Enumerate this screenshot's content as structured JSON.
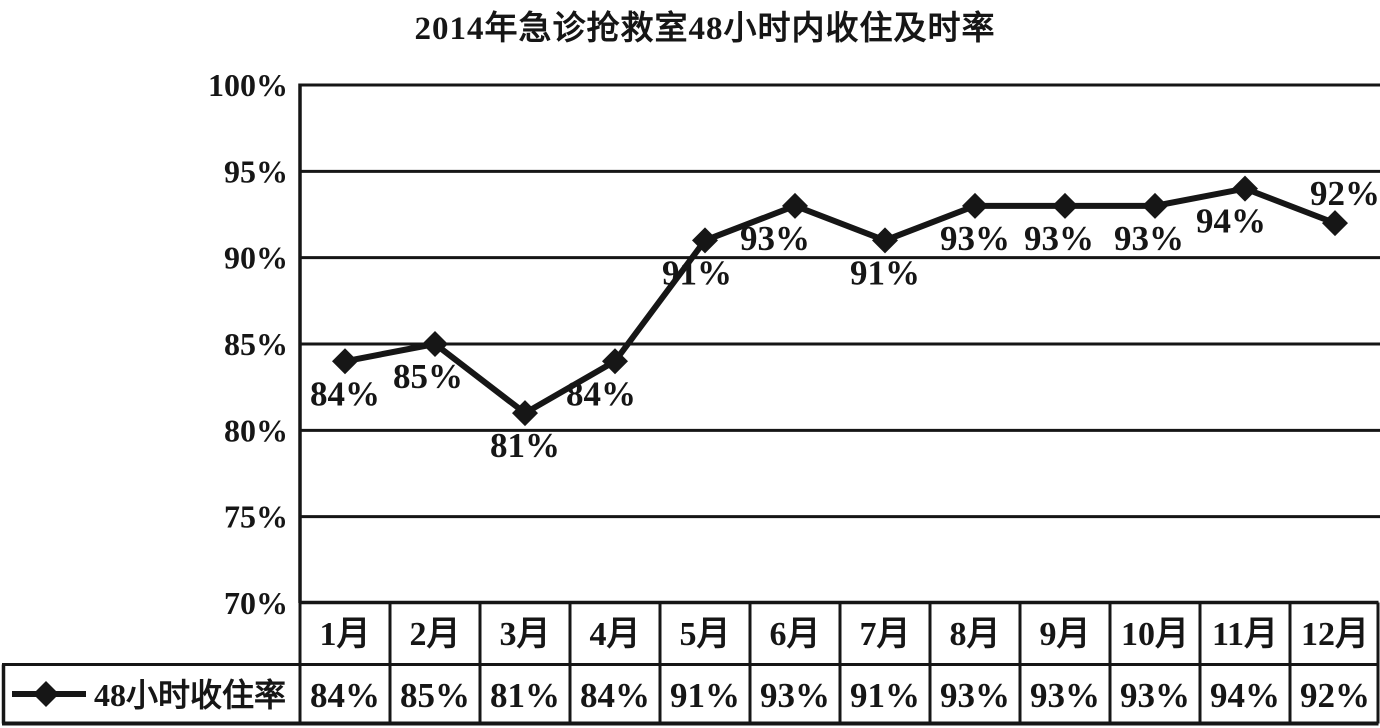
{
  "title": "2014年急诊抢救室48小时内收住及时率",
  "colors": {
    "ink": "#161616",
    "background": "#ffffff"
  },
  "y_axis": {
    "tick_labels": [
      "100%",
      "95%",
      "90%",
      "85%",
      "80%",
      "75%",
      "70%"
    ],
    "tick_values": [
      100,
      95,
      90,
      85,
      80,
      75,
      70
    ]
  },
  "legend": {
    "label": "48小时收住率",
    "marker": "diamond-on-line"
  },
  "chart_data": {
    "type": "line",
    "title": "2014年急诊抢救室48小时内收住及时率",
    "categories": [
      "1月",
      "2月",
      "3月",
      "4月",
      "5月",
      "6月",
      "7月",
      "8月",
      "9月",
      "10月",
      "11月",
      "12月"
    ],
    "series": [
      {
        "name": "48小时收住率",
        "values": [
          84,
          85,
          81,
          84,
          91,
          93,
          91,
          93,
          93,
          93,
          94,
          92
        ]
      }
    ],
    "point_labels": [
      "84%",
      "85%",
      "81%",
      "84%",
      "91%",
      "93%",
      "91%",
      "93%",
      "93%",
      "93%",
      "94%",
      "92%"
    ],
    "xlabel": "",
    "ylabel": "",
    "ylim": [
      70,
      100
    ],
    "y_tick_step": 5,
    "grid": true,
    "marker": "diamond",
    "line_color": "#161616",
    "legend_position": "bottom-table-row"
  },
  "table": {
    "header_row": [
      "1月",
      "2月",
      "3月",
      "4月",
      "5月",
      "6月",
      "7月",
      "8月",
      "9月",
      "10月",
      "11月",
      "12月"
    ],
    "legend_cell": "48小时收住率",
    "value_row": [
      "84%",
      "85%",
      "81%",
      "84%",
      "91%",
      "93%",
      "91%",
      "93%",
      "93%",
      "93%",
      "94%",
      "92%"
    ]
  }
}
